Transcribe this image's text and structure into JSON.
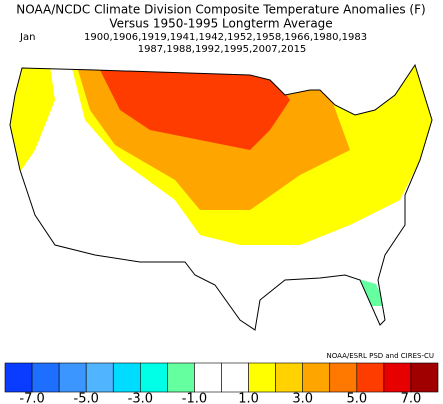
{
  "title": "NOAA/NCDC Climate Division Composite Temperature Anomalies (F)",
  "subtitle": "Versus 1950-1995 Longterm Average",
  "period": {
    "month": "Jan",
    "years_line1": "1900,1906,1919,1941,1942,1952,1958,1966,1980,1983",
    "years_line2": "1987,1988,1992,1995,2007,2015"
  },
  "credit": "NOAA/ESRL PSD and CIRES-CU",
  "colorbar": {
    "colors": [
      "#0a3cff",
      "#1e6eff",
      "#3c96ff",
      "#50b4ff",
      "#00dcff",
      "#00ffe6",
      "#66ffa0",
      "#ffffff",
      "#ffffff",
      "#ffff00",
      "#ffd200",
      "#ffa500",
      "#ff7800",
      "#ff3c00",
      "#e60000",
      "#a00000"
    ],
    "ticks": [
      {
        "value": -7,
        "label": "-7.0"
      },
      {
        "value": -5,
        "label": "-5.0"
      },
      {
        "value": -3,
        "label": "-3.0"
      },
      {
        "value": -1,
        "label": "-1.0"
      },
      {
        "value": 1,
        "label": "1.0"
      },
      {
        "value": 3,
        "label": "3.0"
      },
      {
        "value": 5,
        "label": "5.0"
      },
      {
        "value": 7,
        "label": "7.0"
      }
    ]
  }
}
